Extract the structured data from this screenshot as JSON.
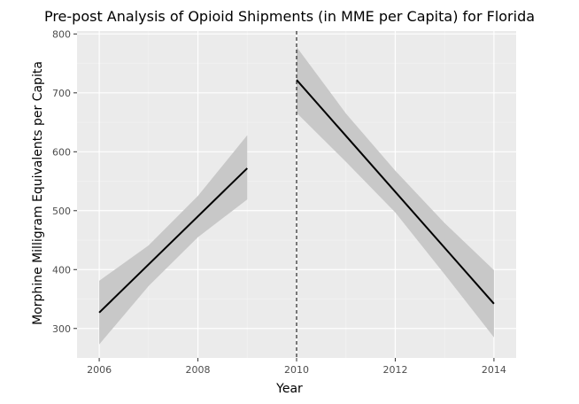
{
  "chart_data": {
    "type": "line",
    "title": "Pre-post Analysis of Opioid Shipments (in MME per Capita) for Florida",
    "xlabel": "Year",
    "ylabel": "Morphine Milligram Equivalents per Capita",
    "xlim": [
      2005.55,
      2014.45
    ],
    "ylim": [
      250,
      805
    ],
    "x_ticks": [
      2006,
      2008,
      2010,
      2012,
      2014
    ],
    "y_ticks": [
      300,
      400,
      500,
      600,
      700,
      800
    ],
    "grid": true,
    "legend": "none",
    "vline": {
      "x": 2010,
      "style": "dashed"
    },
    "series": [
      {
        "x": [
          2006,
          2009
        ],
        "values": [
          327,
          572
        ],
        "ribbon_x": [
          2006,
          2007,
          2008,
          2009
        ],
        "ribbon_upper": [
          381,
          441,
          525,
          628
        ],
        "ribbon_lower": [
          273,
          372,
          455,
          519
        ]
      },
      {
        "x": [
          2010,
          2014
        ],
        "values": [
          722,
          342
        ],
        "ribbon_x": [
          2010,
          2011,
          2012,
          2013,
          2014
        ],
        "ribbon_upper": [
          778,
          665,
          568,
          479,
          399
        ],
        "ribbon_lower": [
          666,
          583,
          497,
          392,
          285
        ]
      }
    ]
  },
  "colors": {
    "panel_background": "#ebebeb",
    "major_grid": "#ffffff",
    "minor_grid": "#f3f3f3",
    "ribbon": "#c8c8c8",
    "line": "#000000",
    "tick": "#333333",
    "tick_label": "#4d4d4d"
  }
}
